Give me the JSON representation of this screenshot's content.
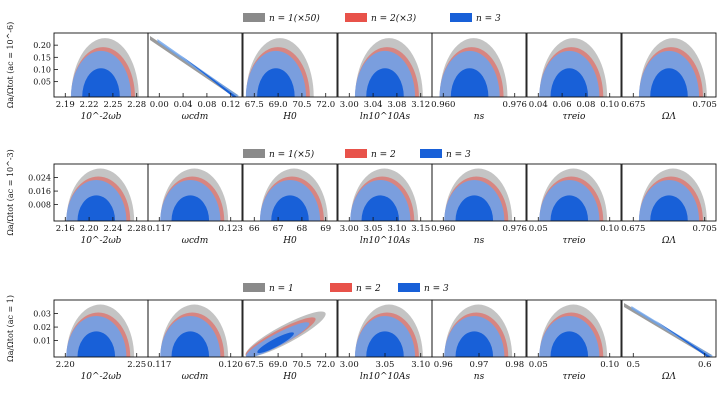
{
  "colors": {
    "grey": "#8a8a8a",
    "red": "#e8524a",
    "blue_light": "#6aa2ee",
    "blue_dark": "#1860d8"
  },
  "chart_data": [
    {
      "type": "contour",
      "title": "",
      "legend": [
        {
          "label": "n = 1(×50)",
          "color": "grey"
        },
        {
          "label": "n = 2(×3)",
          "color": "red"
        },
        {
          "label": "n = 3",
          "color": "blue"
        }
      ],
      "ylabel": "Ωa/Ωtot (ac = 10^-6)",
      "yticks": [
        "0.20",
        "0.15",
        "0.10",
        "0.05"
      ],
      "panels": [
        {
          "xlabel": "10^-2ωb",
          "xticks": [
            "2.19",
            "2.22",
            "2.25",
            "2.28"
          ],
          "shape": "blob",
          "center": 0.5
        },
        {
          "xlabel": "ωcdm",
          "xticks": [
            "0.00",
            "0.04",
            "0.08",
            "0.12"
          ],
          "shape": "diagonal-line",
          "center": 0.9
        },
        {
          "xlabel": "H0",
          "xticks": [
            "67.5",
            "69.0",
            "70.5",
            "72.0"
          ],
          "shape": "blob",
          "center": 0.35
        },
        {
          "xlabel": "ln10^10As",
          "xticks": [
            "3.00",
            "3.04",
            "3.08",
            "3.12"
          ],
          "shape": "blob",
          "center": 0.5
        },
        {
          "xlabel": "ns",
          "xticks": [
            "0.960",
            "0.976"
          ],
          "shape": "blob",
          "center": 0.4
        },
        {
          "xlabel": "τreio",
          "xticks": [
            "0.04",
            "0.06",
            "0.08",
            "0.10"
          ],
          "shape": "blob",
          "center": 0.45
        },
        {
          "xlabel": "ΩΛ",
          "xticks": [
            "0.675",
            "0.705"
          ],
          "shape": "blob",
          "center": 0.5
        }
      ]
    },
    {
      "type": "contour",
      "title": "",
      "legend": [
        {
          "label": "n = 1(×5)",
          "color": "grey"
        },
        {
          "label": "n = 2",
          "color": "red"
        },
        {
          "label": "n = 3",
          "color": "blue"
        }
      ],
      "ylabel": "Ωa/Ωtot (ac = 10^-3)",
      "yticks": [
        "0.024",
        "0.016",
        "0.008"
      ],
      "panels": [
        {
          "xlabel": "10^-2ωb",
          "xticks": [
            "2.16",
            "2.20",
            "2.24",
            "2.28"
          ],
          "shape": "blob",
          "center": 0.45
        },
        {
          "xlabel": "ωcdm",
          "xticks": [
            "0.117",
            "0.123"
          ],
          "shape": "blob",
          "center": 0.45
        },
        {
          "xlabel": "H0",
          "xticks": [
            "66",
            "67",
            "68",
            "69"
          ],
          "shape": "blob",
          "center": 0.5
        },
        {
          "xlabel": "ln10^10As",
          "xticks": [
            "3.00",
            "3.05",
            "3.10",
            "3.15"
          ],
          "shape": "blob",
          "center": 0.45
        },
        {
          "xlabel": "ns",
          "xticks": [
            "0.960",
            "0.976"
          ],
          "shape": "blob",
          "center": 0.45
        },
        {
          "xlabel": "τreio",
          "xticks": [
            "0.05",
            "0.10"
          ],
          "shape": "blob",
          "center": 0.45
        },
        {
          "xlabel": "ΩΛ",
          "xticks": [
            "0.675",
            "0.705"
          ],
          "shape": "blob",
          "center": 0.5
        }
      ]
    },
    {
      "type": "contour",
      "title": "",
      "legend": [
        {
          "label": "n = 1",
          "color": "grey"
        },
        {
          "label": "n = 2",
          "color": "red"
        },
        {
          "label": "n = 3",
          "color": "blue"
        }
      ],
      "ylabel": "Ωa/Ωtot (ac = 1)",
      "yticks": [
        "0.03",
        "0.02",
        "0.01"
      ],
      "panels": [
        {
          "xlabel": "10^-2ωb",
          "xticks": [
            "2.20",
            "2.25"
          ],
          "shape": "blob",
          "center": 0.45
        },
        {
          "xlabel": "ωcdm",
          "xticks": [
            "0.117",
            "0.120"
          ],
          "shape": "blob",
          "center": 0.45
        },
        {
          "xlabel": "H0",
          "xticks": [
            "67.5",
            "69.0",
            "70.5",
            "72.0"
          ],
          "shape": "diagonal-blob",
          "center": 0.4
        },
        {
          "xlabel": "ln10^10As",
          "xticks": [
            "3.00",
            "3.05",
            "3.10"
          ],
          "shape": "blob",
          "center": 0.5
        },
        {
          "xlabel": "ns",
          "xticks": [
            "0.96",
            "0.97",
            "0.98"
          ],
          "shape": "blob",
          "center": 0.45
        },
        {
          "xlabel": "τreio",
          "xticks": [
            "0.05",
            "0.10"
          ],
          "shape": "blob",
          "center": 0.45
        },
        {
          "xlabel": "ΩΛ",
          "xticks": [
            "0.5",
            "0.6"
          ],
          "shape": "diagonal-line",
          "center": 0.6
        }
      ]
    }
  ]
}
